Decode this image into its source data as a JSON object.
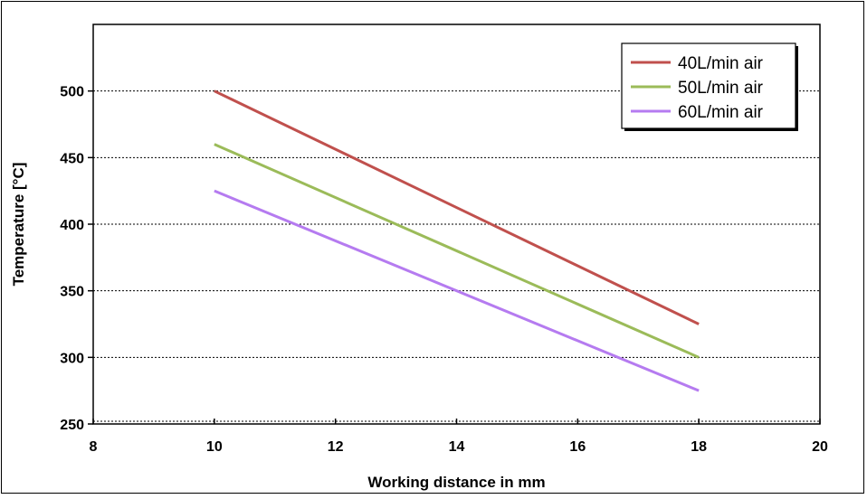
{
  "chart_data": {
    "type": "line",
    "title": "",
    "xlabel": "Working distance in mm",
    "ylabel": "Temperature [°C]",
    "xlim": [
      8,
      20
    ],
    "ylim": [
      250,
      550
    ],
    "xticks": [
      8,
      10,
      12,
      14,
      16,
      18,
      20
    ],
    "yticks": [
      250,
      300,
      350,
      400,
      450,
      500
    ],
    "grid": "horizontal dotted",
    "legend_position": "top-right",
    "series": [
      {
        "name": "40L/min air",
        "color": "#c0504d",
        "x": [
          10,
          18
        ],
        "y": [
          500,
          325
        ]
      },
      {
        "name": "50L/min air",
        "color": "#9bbb59",
        "x": [
          10,
          18
        ],
        "y": [
          460,
          300
        ]
      },
      {
        "name": "60L/min air",
        "color": "#b57bf0",
        "x": [
          10,
          18
        ],
        "y": [
          425,
          275
        ]
      }
    ]
  }
}
